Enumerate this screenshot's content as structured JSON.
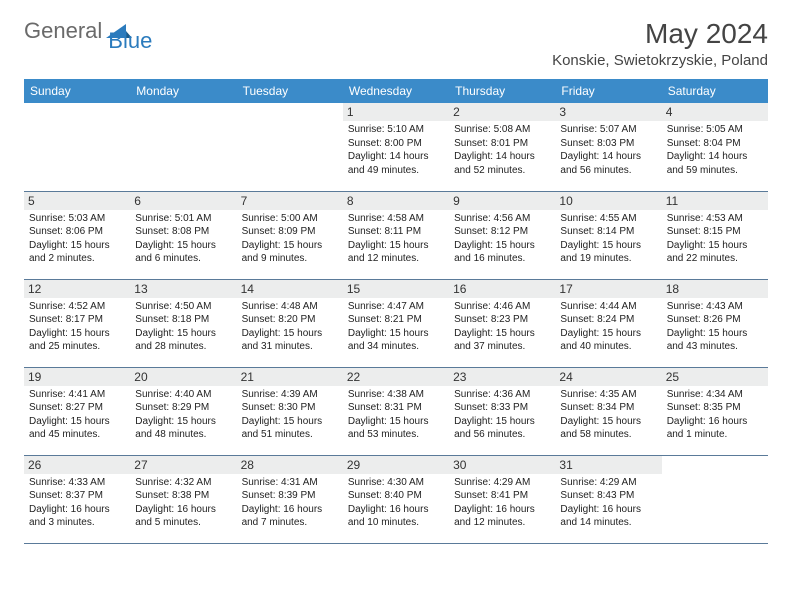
{
  "logo": {
    "text1": "General",
    "text2": "Blue"
  },
  "title": "May 2024",
  "location": "Konskie, Swietokrzyskie, Poland",
  "colors": {
    "headerBg": "#3b8bc9",
    "headerText": "#ffffff",
    "dayBg": "#eceded",
    "border": "#5a7a99",
    "logoGray": "#6a6a6a",
    "logoBlue": "#2b7bbd"
  },
  "dayNames": [
    "Sunday",
    "Monday",
    "Tuesday",
    "Wednesday",
    "Thursday",
    "Friday",
    "Saturday"
  ],
  "weeks": [
    [
      {
        "blank": true
      },
      {
        "blank": true
      },
      {
        "blank": true
      },
      {
        "num": "1",
        "sunrise": "5:10 AM",
        "sunset": "8:00 PM",
        "daylight": "14 hours and 49 minutes."
      },
      {
        "num": "2",
        "sunrise": "5:08 AM",
        "sunset": "8:01 PM",
        "daylight": "14 hours and 52 minutes."
      },
      {
        "num": "3",
        "sunrise": "5:07 AM",
        "sunset": "8:03 PM",
        "daylight": "14 hours and 56 minutes."
      },
      {
        "num": "4",
        "sunrise": "5:05 AM",
        "sunset": "8:04 PM",
        "daylight": "14 hours and 59 minutes."
      }
    ],
    [
      {
        "num": "5",
        "sunrise": "5:03 AM",
        "sunset": "8:06 PM",
        "daylight": "15 hours and 2 minutes."
      },
      {
        "num": "6",
        "sunrise": "5:01 AM",
        "sunset": "8:08 PM",
        "daylight": "15 hours and 6 minutes."
      },
      {
        "num": "7",
        "sunrise": "5:00 AM",
        "sunset": "8:09 PM",
        "daylight": "15 hours and 9 minutes."
      },
      {
        "num": "8",
        "sunrise": "4:58 AM",
        "sunset": "8:11 PM",
        "daylight": "15 hours and 12 minutes."
      },
      {
        "num": "9",
        "sunrise": "4:56 AM",
        "sunset": "8:12 PM",
        "daylight": "15 hours and 16 minutes."
      },
      {
        "num": "10",
        "sunrise": "4:55 AM",
        "sunset": "8:14 PM",
        "daylight": "15 hours and 19 minutes."
      },
      {
        "num": "11",
        "sunrise": "4:53 AM",
        "sunset": "8:15 PM",
        "daylight": "15 hours and 22 minutes."
      }
    ],
    [
      {
        "num": "12",
        "sunrise": "4:52 AM",
        "sunset": "8:17 PM",
        "daylight": "15 hours and 25 minutes."
      },
      {
        "num": "13",
        "sunrise": "4:50 AM",
        "sunset": "8:18 PM",
        "daylight": "15 hours and 28 minutes."
      },
      {
        "num": "14",
        "sunrise": "4:48 AM",
        "sunset": "8:20 PM",
        "daylight": "15 hours and 31 minutes."
      },
      {
        "num": "15",
        "sunrise": "4:47 AM",
        "sunset": "8:21 PM",
        "daylight": "15 hours and 34 minutes."
      },
      {
        "num": "16",
        "sunrise": "4:46 AM",
        "sunset": "8:23 PM",
        "daylight": "15 hours and 37 minutes."
      },
      {
        "num": "17",
        "sunrise": "4:44 AM",
        "sunset": "8:24 PM",
        "daylight": "15 hours and 40 minutes."
      },
      {
        "num": "18",
        "sunrise": "4:43 AM",
        "sunset": "8:26 PM",
        "daylight": "15 hours and 43 minutes."
      }
    ],
    [
      {
        "num": "19",
        "sunrise": "4:41 AM",
        "sunset": "8:27 PM",
        "daylight": "15 hours and 45 minutes."
      },
      {
        "num": "20",
        "sunrise": "4:40 AM",
        "sunset": "8:29 PM",
        "daylight": "15 hours and 48 minutes."
      },
      {
        "num": "21",
        "sunrise": "4:39 AM",
        "sunset": "8:30 PM",
        "daylight": "15 hours and 51 minutes."
      },
      {
        "num": "22",
        "sunrise": "4:38 AM",
        "sunset": "8:31 PM",
        "daylight": "15 hours and 53 minutes."
      },
      {
        "num": "23",
        "sunrise": "4:36 AM",
        "sunset": "8:33 PM",
        "daylight": "15 hours and 56 minutes."
      },
      {
        "num": "24",
        "sunrise": "4:35 AM",
        "sunset": "8:34 PM",
        "daylight": "15 hours and 58 minutes."
      },
      {
        "num": "25",
        "sunrise": "4:34 AM",
        "sunset": "8:35 PM",
        "daylight": "16 hours and 1 minute."
      }
    ],
    [
      {
        "num": "26",
        "sunrise": "4:33 AM",
        "sunset": "8:37 PM",
        "daylight": "16 hours and 3 minutes."
      },
      {
        "num": "27",
        "sunrise": "4:32 AM",
        "sunset": "8:38 PM",
        "daylight": "16 hours and 5 minutes."
      },
      {
        "num": "28",
        "sunrise": "4:31 AM",
        "sunset": "8:39 PM",
        "daylight": "16 hours and 7 minutes."
      },
      {
        "num": "29",
        "sunrise": "4:30 AM",
        "sunset": "8:40 PM",
        "daylight": "16 hours and 10 minutes."
      },
      {
        "num": "30",
        "sunrise": "4:29 AM",
        "sunset": "8:41 PM",
        "daylight": "16 hours and 12 minutes."
      },
      {
        "num": "31",
        "sunrise": "4:29 AM",
        "sunset": "8:43 PM",
        "daylight": "16 hours and 14 minutes."
      },
      {
        "blank": true
      }
    ]
  ],
  "labels": {
    "sunrise": "Sunrise: ",
    "sunset": "Sunset: ",
    "daylight": "Daylight: "
  }
}
